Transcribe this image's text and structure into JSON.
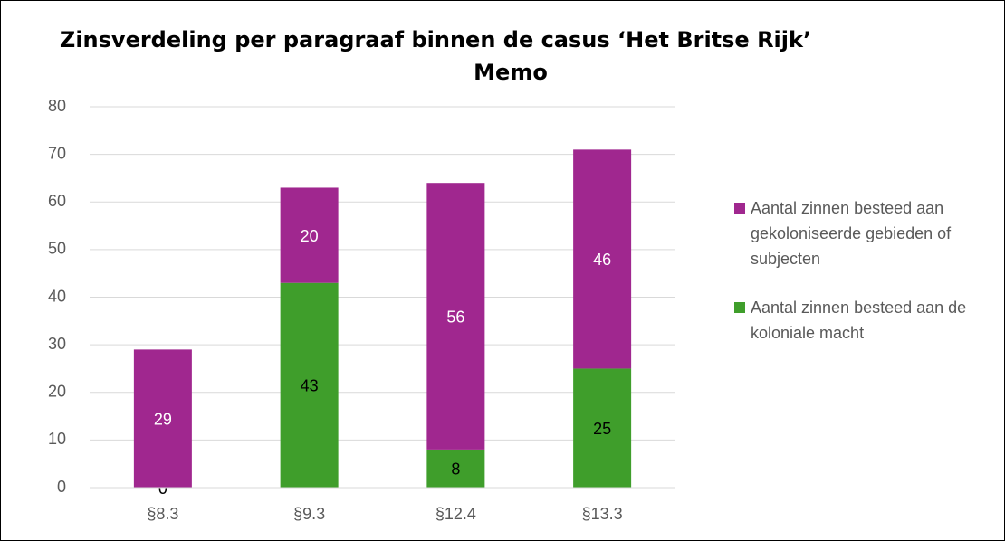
{
  "chart_data": {
    "type": "stacked_bar",
    "title": "Zinsverdeling per paragraaf binnen de casus ‘Het Britse Rijk’",
    "subtitle": "Memo",
    "categories": [
      "§8.3",
      "§9.3",
      "§12.4",
      "§13.3"
    ],
    "series": [
      {
        "name": "Aantal zinnen besteed aan gekoloniseerde gebieden of subjecten",
        "color": "#a0278f",
        "label_color": "#ffffff",
        "values": [
          29,
          20,
          56,
          46
        ]
      },
      {
        "name": "Aantal zinnen besteed aan de koloniale macht",
        "color": "#3f9e2b",
        "label_color": "#000000",
        "values": [
          0,
          43,
          8,
          25
        ]
      }
    ],
    "stack_order": [
      1,
      0
    ],
    "ylim": [
      0,
      80
    ],
    "yticks": [
      0,
      10,
      20,
      30,
      40,
      50,
      60,
      70,
      80
    ],
    "grid": true,
    "legend": "right"
  }
}
